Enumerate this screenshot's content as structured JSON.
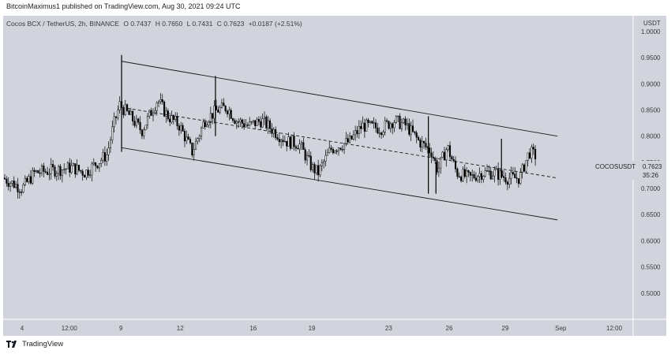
{
  "header": {
    "publisher": "BitcoinMaximus1 published on TradingView.com, Aug 30, 2021 09:24 UTC"
  },
  "legend": {
    "symbol": "Cocos BCX / TetherUS, 2h, BINANCE",
    "open_label": "O",
    "open": "0.7437",
    "high_label": "H",
    "high": "0.7650",
    "low_label": "L",
    "low": "0.7431",
    "close_label": "C",
    "close": "0.7623",
    "change": "+0.0187 (+2.51%)"
  },
  "price_axis": {
    "currency": "USDT",
    "ticks": [
      "1.0000",
      "0.9500",
      "0.9000",
      "0.8500",
      "0.8000",
      "0.7500",
      "0.7000",
      "0.6500",
      "0.6000",
      "0.5500",
      "0.5000"
    ]
  },
  "time_axis": {
    "ticks": [
      "4",
      "12:00",
      "9",
      "12",
      "16",
      "19",
      "23",
      "26",
      "29",
      "Sep",
      "12:00"
    ]
  },
  "last_price": {
    "symbol": "COCOSUSDT",
    "value": "0.7623",
    "countdown": "35:26"
  },
  "footer": {
    "brand": "TradingView"
  },
  "colors": {
    "background": "#d1d4dc",
    "axis_bg": "#d1d4dc",
    "candle": "#000000",
    "text": "#3a3a3a"
  },
  "chart_data": {
    "type": "candlestick",
    "title": "Cocos BCX / TetherUS, 2h, BINANCE",
    "y_range": [
      0.45,
      1.03
    ],
    "x_labels": [
      "4",
      "12:00",
      "9",
      "12",
      "16",
      "19",
      "23",
      "26",
      "29",
      "Sep",
      "12:00"
    ],
    "ylabel": "USDT",
    "grid": false,
    "anchors": [
      [
        0,
        0.72
      ],
      [
        0.03,
        0.7
      ],
      [
        0.05,
        0.73
      ],
      [
        0.08,
        0.735
      ],
      [
        0.11,
        0.74
      ],
      [
        0.13,
        0.73
      ],
      [
        0.15,
        0.75
      ],
      [
        0.165,
        0.765
      ],
      [
        0.175,
        0.82
      ],
      [
        0.185,
        0.86
      ],
      [
        0.2,
        0.84
      ],
      [
        0.22,
        0.81
      ],
      [
        0.245,
        0.87
      ],
      [
        0.26,
        0.84
      ],
      [
        0.28,
        0.82
      ],
      [
        0.3,
        0.77
      ],
      [
        0.32,
        0.83
      ],
      [
        0.34,
        0.85
      ],
      [
        0.355,
        0.855
      ],
      [
        0.37,
        0.83
      ],
      [
        0.39,
        0.82
      ],
      [
        0.41,
        0.83
      ],
      [
        0.43,
        0.81
      ],
      [
        0.45,
        0.79
      ],
      [
        0.47,
        0.785
      ],
      [
        0.49,
        0.74
      ],
      [
        0.5,
        0.73
      ],
      [
        0.52,
        0.775
      ],
      [
        0.55,
        0.79
      ],
      [
        0.57,
        0.82
      ],
      [
        0.6,
        0.815
      ],
      [
        0.62,
        0.83
      ],
      [
        0.64,
        0.82
      ],
      [
        0.66,
        0.79
      ],
      [
        0.68,
        0.77
      ],
      [
        0.69,
        0.735
      ],
      [
        0.705,
        0.78
      ],
      [
        0.72,
        0.73
      ],
      [
        0.74,
        0.72
      ],
      [
        0.76,
        0.73
      ],
      [
        0.78,
        0.73
      ],
      [
        0.8,
        0.72
      ],
      [
        0.82,
        0.72
      ],
      [
        0.835,
        0.77
      ],
      [
        0.845,
        0.7623
      ]
    ],
    "channel": {
      "upper": [
        [
          0.188,
          0.943
        ],
        [
          0.88,
          0.8
        ]
      ],
      "middle": [
        [
          0.188,
          0.855
        ],
        [
          0.88,
          0.72
        ]
      ],
      "lower": [
        [
          0.188,
          0.778
        ],
        [
          0.88,
          0.64
        ]
      ]
    }
  }
}
